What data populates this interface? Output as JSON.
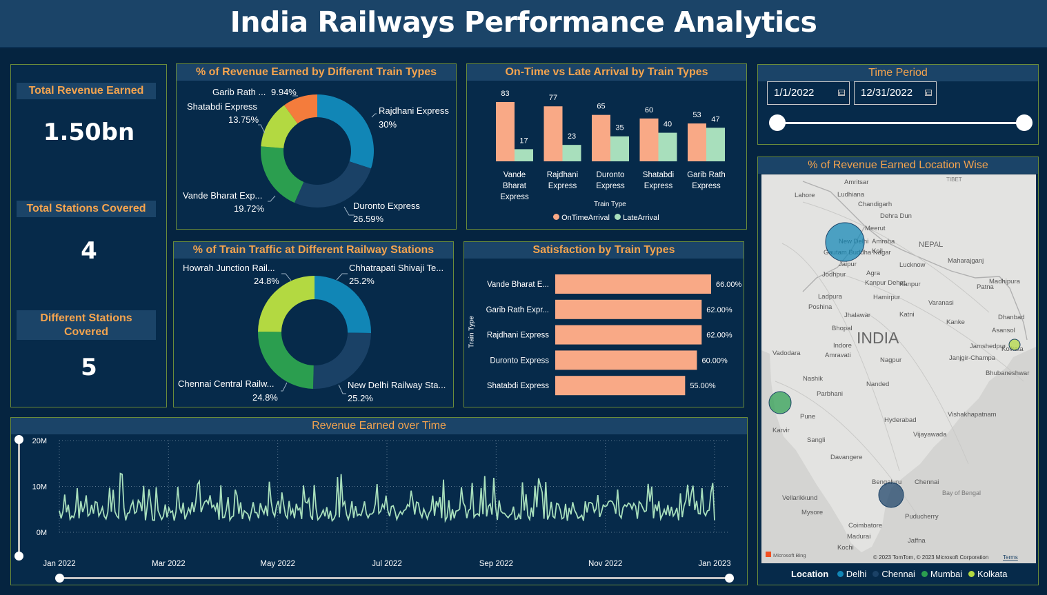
{
  "title": "India Railways Performance Analytics",
  "kpis": {
    "revenue": {
      "label": "Total Revenue Earned",
      "value": "1.50bn"
    },
    "stations": {
      "label": "Total Stations Covered",
      "value": "4"
    },
    "different": {
      "label": "Different Stations Covered",
      "value": "5"
    }
  },
  "revenue_pie": {
    "title": "% of Revenue Earned by Different Train Types",
    "slices": [
      {
        "name": "Rajdhani Express",
        "pct": "30%",
        "value": 30,
        "color": "#1186b6"
      },
      {
        "name": "Duronto Express",
        "pct": "26.59%",
        "value": 26.59,
        "color": "#1a4166"
      },
      {
        "name": "Vande Bharat Exp...",
        "pct": "19.72%",
        "value": 19.72,
        "color": "#2b9e4f"
      },
      {
        "name": "Shatabdi Express",
        "pct": "13.75%",
        "value": 13.75,
        "color": "#b3d941"
      },
      {
        "name": "Garib Rath ...",
        "pct": "9.94%",
        "value": 9.94,
        "color": "#f47c3c"
      }
    ]
  },
  "arrival_chart": {
    "title": "On-Time vs Late Arrival by Train Types",
    "xlabel": "Train Type",
    "legend": [
      "OnTimeArrival",
      "LateArrival"
    ],
    "colors": [
      "#f9a986",
      "#a8dfbc"
    ],
    "categories": [
      {
        "lines": [
          "Vande",
          "Bharat",
          "Express"
        ],
        "ontime": 83,
        "late": 17
      },
      {
        "lines": [
          "Rajdhani",
          "Express"
        ],
        "ontime": 77,
        "late": 23
      },
      {
        "lines": [
          "Duronto",
          "Express"
        ],
        "ontime": 65,
        "late": 35
      },
      {
        "lines": [
          "Shatabdi",
          "Express"
        ],
        "ontime": 60,
        "late": 40
      },
      {
        "lines": [
          "Garib Rath",
          "Express"
        ],
        "ontime": 53,
        "late": 47
      }
    ]
  },
  "traffic_pie": {
    "title": "% of Train Traffic at Different Railway Stations",
    "slices": [
      {
        "name": "Chhatrapati Shivaji Te...",
        "pct": "25.2%",
        "value": 25.2,
        "color": "#1186b6"
      },
      {
        "name": "New Delhi Railway Sta...",
        "pct": "25.2%",
        "value": 25.2,
        "color": "#1a4166"
      },
      {
        "name": "Chennai Central Railw...",
        "pct": "24.8%",
        "value": 24.8,
        "color": "#2b9e4f"
      },
      {
        "name": "Howrah Junction Rail...",
        "pct": "24.8%",
        "value": 24.8,
        "color": "#b3d941"
      }
    ]
  },
  "satisfaction": {
    "title": "Satisfaction by Train Types",
    "ylabel": "Train Type",
    "bars": [
      {
        "name": "Vande Bharat E...",
        "value": 66,
        "label": "66.00%"
      },
      {
        "name": "Garib Rath Expr...",
        "value": 62,
        "label": "62.00%"
      },
      {
        "name": "Rajdhani Express",
        "value": 62,
        "label": "62.00%"
      },
      {
        "name": "Duronto Express",
        "value": 60,
        "label": "60.00%"
      },
      {
        "name": "Shatabdi Express",
        "value": 55,
        "label": "55.00%"
      }
    ]
  },
  "time_period": {
    "title": "Time Period",
    "start": "1/1/2022",
    "end": "12/31/2022"
  },
  "map": {
    "title": "% of Revenue Earned Location Wise",
    "country": "INDIA",
    "neighbors": [
      "NEPAL",
      "TIBET",
      "Bay of Bengal"
    ],
    "cities": [
      "Amritsar",
      "Ludhiana",
      "Lahore",
      "Chandigarh",
      "Dehra Dun",
      "Meerut",
      "New Delhi",
      "Amroha",
      "Koil",
      "Gautam Buddha Nagar",
      "Jaipur",
      "Agra",
      "Lucknow",
      "Jodhpur",
      "Kanpur Dehat",
      "Kanpur",
      "Maharajganj",
      "Patna",
      "Madhipura",
      "Ladpura",
      "Hamirpur",
      "Varanasi",
      "Poshina",
      "Jhalawar",
      "Katni",
      "Bhopal",
      "Dhanbad",
      "Kanke",
      "Asansol",
      "Indore",
      "Jamshedpur",
      "Kolkata",
      "Vadodara",
      "Amravati",
      "Nagpur",
      "Janjgir-Champa",
      "Bhubaneshwar",
      "Nashik",
      "Parbhani",
      "Nanded",
      "Pune",
      "Hyderabad",
      "Vishakhapatnam",
      "Karvir",
      "Sangli",
      "Vijayawada",
      "Davangere",
      "Bengaluru",
      "Chennai",
      "Vellarikkund",
      "Mysore",
      "Puducherry",
      "Coimbatore",
      "Madurai",
      "Kochi",
      "Jaffna"
    ],
    "attribution": "© 2023 TomTom, © 2023 Microsoft Corporation",
    "terms": "Terms",
    "bing": "Microsoft Bing",
    "legend_title": "Location",
    "legend": [
      {
        "name": "Delhi",
        "color": "#1186b6"
      },
      {
        "name": "Chennai",
        "color": "#1a4166"
      },
      {
        "name": "Mumbai",
        "color": "#2b9e4f"
      },
      {
        "name": "Kolkata",
        "color": "#b3d941"
      }
    ]
  },
  "revenue_time": {
    "title": "Revenue Earned over Time",
    "yticks": [
      "20M",
      "10M",
      "0M"
    ],
    "xticks": [
      "Jan 2022",
      "Mar 2022",
      "May 2022",
      "Jul 2022",
      "Sep 2022",
      "Nov 2022",
      "Jan 2023"
    ],
    "color": "#a8dfbc"
  },
  "chart_data": [
    {
      "type": "pie",
      "title": "% of Revenue Earned by Different Train Types",
      "labels": [
        "Rajdhani Express",
        "Duronto Express",
        "Vande Bharat Express",
        "Shatabdi Express",
        "Garib Rath Express"
      ],
      "values": [
        30,
        26.59,
        19.72,
        13.75,
        9.94
      ]
    },
    {
      "type": "bar",
      "title": "On-Time vs Late Arrival by Train Types",
      "categories": [
        "Vande Bharat Express",
        "Rajdhani Express",
        "Duronto Express",
        "Shatabdi Express",
        "Garib Rath Express"
      ],
      "series": [
        {
          "name": "OnTimeArrival",
          "values": [
            83,
            77,
            65,
            60,
            53
          ]
        },
        {
          "name": "LateArrival",
          "values": [
            17,
            23,
            35,
            40,
            47
          ]
        }
      ],
      "xlabel": "Train Type"
    },
    {
      "type": "pie",
      "title": "% of Train Traffic at Different Railway Stations",
      "labels": [
        "Chhatrapati Shivaji Terminus",
        "New Delhi Railway Station",
        "Chennai Central Railway",
        "Howrah Junction Railway"
      ],
      "values": [
        25.2,
        25.2,
        24.8,
        24.8
      ]
    },
    {
      "type": "bar",
      "title": "Satisfaction by Train Types",
      "categories": [
        "Vande Bharat Express",
        "Garib Rath Express",
        "Rajdhani Express",
        "Duronto Express",
        "Shatabdi Express"
      ],
      "values": [
        66,
        62,
        62,
        60,
        55
      ],
      "ylabel": "Train Type"
    },
    {
      "type": "line",
      "title": "Revenue Earned over Time",
      "xlim": [
        "Jan 2022",
        "Jan 2023"
      ],
      "ylim": [
        0,
        20000000
      ],
      "yticks": [
        "0M",
        "10M",
        "20M"
      ],
      "grid": true
    }
  ]
}
